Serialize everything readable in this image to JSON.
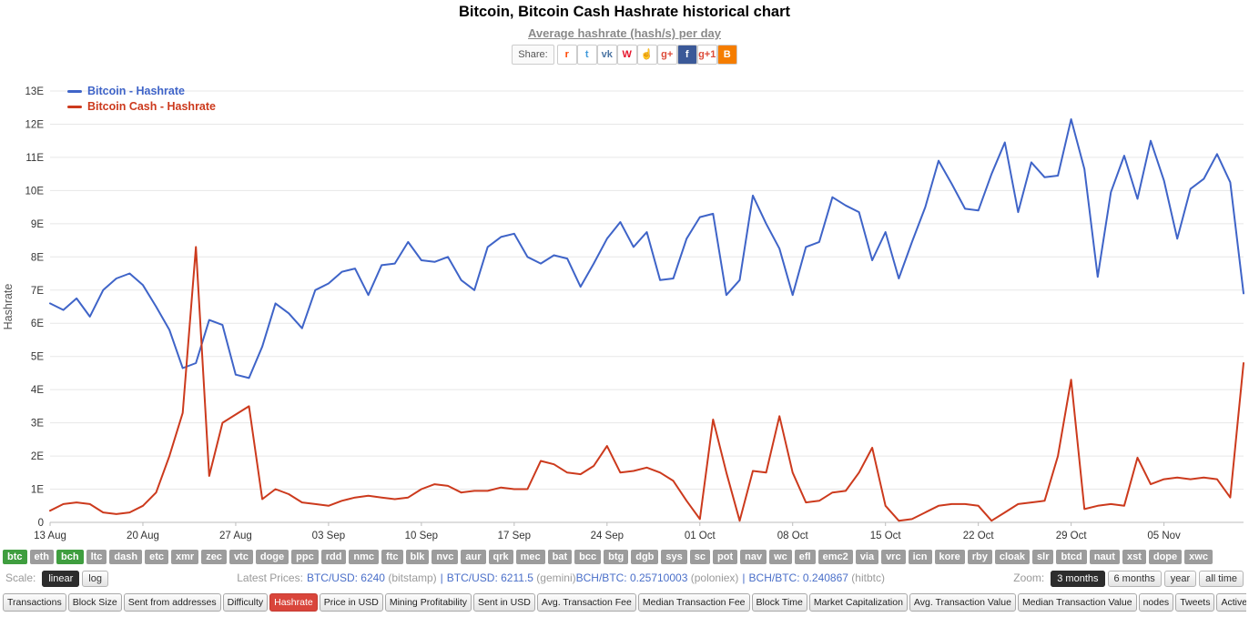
{
  "header": {
    "title": "Bitcoin, Bitcoin Cash Hashrate historical chart",
    "subtitle": "Average hashrate (hash/s) per day",
    "share_label": "Share:",
    "share_icons": [
      {
        "name": "reddit",
        "glyph": "r",
        "fg": "#ff4500",
        "bg": "#ffffff"
      },
      {
        "name": "twitter",
        "glyph": "t",
        "fg": "#4099db",
        "bg": "#ffffff"
      },
      {
        "name": "vkontakte",
        "glyph": "vk",
        "fg": "#4c75a3",
        "bg": "#ffffff"
      },
      {
        "name": "weibo",
        "glyph": "W",
        "fg": "#e6162d",
        "bg": "#ffffff"
      },
      {
        "name": "thumbs-up",
        "glyph": "☝",
        "fg": "#3b5998",
        "bg": "#ffffff"
      },
      {
        "name": "google-plus",
        "glyph": "g+",
        "fg": "#dd4b39",
        "bg": "#ffffff"
      },
      {
        "name": "facebook",
        "glyph": "f",
        "fg": "#ffffff",
        "bg": "#3b5998"
      },
      {
        "name": "google-plus-one",
        "glyph": "g+1",
        "fg": "#dd4b39",
        "bg": "#ffffff"
      },
      {
        "name": "blogger",
        "glyph": "B",
        "fg": "#ffffff",
        "bg": "#f57d00"
      }
    ]
  },
  "chart_data": {
    "type": "line",
    "title": "Bitcoin, Bitcoin Cash Hashrate historical chart",
    "xlabel": "",
    "ylabel": "Hashrate",
    "ylim": [
      0,
      13
    ],
    "grid": "horizontal",
    "legend_position": "top-left",
    "y_ticks": [
      "0",
      "1E",
      "2E",
      "3E",
      "4E",
      "5E",
      "6E",
      "7E",
      "8E",
      "9E",
      "10E",
      "11E",
      "12E",
      "13E"
    ],
    "x_tick_labels": [
      "13 Aug",
      "20 Aug",
      "27 Aug",
      "03 Sep",
      "10 Sep",
      "17 Sep",
      "24 Sep",
      "01 Oct",
      "08 Oct",
      "15 Oct",
      "22 Oct",
      "29 Oct",
      "05 Nov"
    ],
    "x_tick_days": [
      0,
      7,
      14,
      21,
      28,
      35,
      42,
      49,
      56,
      63,
      70,
      77,
      84
    ],
    "series": [
      {
        "name": "Bitcoin - Hashrate",
        "color": "#3f64c8",
        "values": [
          6.6,
          6.4,
          6.75,
          6.2,
          7.0,
          7.35,
          7.5,
          7.15,
          6.5,
          5.8,
          4.65,
          4.8,
          6.1,
          5.95,
          4.45,
          4.35,
          5.3,
          6.6,
          6.3,
          5.85,
          7.0,
          7.2,
          7.55,
          7.65,
          6.85,
          7.75,
          7.8,
          8.45,
          7.9,
          7.85,
          8.0,
          7.3,
          7.0,
          8.3,
          8.6,
          8.7,
          8.0,
          7.8,
          8.05,
          7.95,
          7.1,
          7.8,
          8.55,
          9.05,
          8.3,
          8.75,
          7.3,
          7.35,
          8.55,
          9.2,
          9.3,
          6.85,
          7.3,
          9.85,
          9.0,
          8.25,
          6.85,
          8.3,
          8.45,
          9.8,
          9.55,
          9.35,
          7.9,
          8.75,
          7.35,
          8.45,
          9.5,
          10.9,
          10.2,
          9.45,
          9.4,
          10.5,
          11.45,
          9.35,
          10.85,
          10.4,
          10.45,
          12.15,
          10.65,
          7.4,
          9.95,
          11.05,
          9.75,
          11.5,
          10.3,
          8.55,
          10.05,
          10.35,
          11.1,
          10.25,
          6.9
        ]
      },
      {
        "name": "Bitcoin Cash - Hashrate",
        "color": "#cc3a1d",
        "values": [
          0.35,
          0.55,
          0.6,
          0.55,
          0.3,
          0.25,
          0.3,
          0.5,
          0.9,
          2.0,
          3.3,
          8.3,
          1.4,
          3.0,
          3.25,
          3.5,
          0.7,
          1.0,
          0.85,
          0.6,
          0.55,
          0.5,
          0.65,
          0.75,
          0.8,
          0.75,
          0.7,
          0.75,
          1.0,
          1.15,
          1.1,
          0.9,
          0.95,
          0.95,
          1.05,
          1.0,
          1.0,
          1.85,
          1.75,
          1.5,
          1.45,
          1.7,
          2.3,
          1.5,
          1.55,
          1.65,
          1.5,
          1.25,
          0.65,
          0.1,
          3.1,
          1.5,
          0.05,
          1.55,
          1.5,
          3.2,
          1.5,
          0.6,
          0.65,
          0.9,
          0.95,
          1.5,
          2.25,
          0.5,
          0.05,
          0.1,
          0.3,
          0.5,
          0.55,
          0.55,
          0.5,
          0.05,
          0.3,
          0.55,
          0.6,
          0.65,
          2.0,
          4.3,
          0.4,
          0.5,
          0.55,
          0.5,
          1.95,
          1.15,
          1.3,
          1.35,
          1.3,
          1.35,
          1.3,
          0.75,
          4.8
        ]
      }
    ]
  },
  "coins": {
    "selected": [
      "btc",
      "bch"
    ],
    "items": [
      "btc",
      "eth",
      "bch",
      "ltc",
      "dash",
      "etc",
      "xmr",
      "zec",
      "vtc",
      "doge",
      "ppc",
      "rdd",
      "nmc",
      "ftc",
      "blk",
      "nvc",
      "aur",
      "qrk",
      "mec",
      "bat",
      "bcc",
      "btg",
      "dgb",
      "sys",
      "sc",
      "pot",
      "nav",
      "wc",
      "efl",
      "emc2",
      "via",
      "vrc",
      "icn",
      "kore",
      "rby",
      "cloak",
      "slr",
      "btcd",
      "naut",
      "xst",
      "dope",
      "xwc"
    ]
  },
  "controls": {
    "scale_label": "Scale:",
    "scale_options": [
      {
        "label": "linear",
        "active": true
      },
      {
        "label": "log",
        "active": false
      }
    ],
    "latest_prices_label": "Latest Prices:",
    "prices": [
      {
        "pair": "BTC/USD:",
        "value": "6240",
        "exchange": "(bitstamp)",
        "sep_after": true
      },
      {
        "pair": "BTC/USD:",
        "value": "6211.5",
        "exchange": "(gemini)",
        "sep_after": false
      },
      {
        "pair": "BCH/BTC:",
        "value": "0.25710003",
        "exchange": "(poloniex)",
        "sep_after": true
      },
      {
        "pair": "BCH/BTC:",
        "value": "0.240867",
        "exchange": "(hitbtc)",
        "sep_after": false
      }
    ],
    "zoom_label": "Zoom:",
    "zoom_options": [
      {
        "label": "3 months",
        "active": true
      },
      {
        "label": "6 months",
        "active": false
      },
      {
        "label": "year",
        "active": false
      },
      {
        "label": "all time",
        "active": false
      }
    ]
  },
  "metrics": {
    "active": "Hashrate",
    "items": [
      "Transactions",
      "Block Size",
      "Sent from addresses",
      "Difficulty",
      "Hashrate",
      "Price in USD",
      "Mining Profitability",
      "Sent in USD",
      "Avg. Transaction Fee",
      "Median Transaction Fee",
      "Block Time",
      "Market Capitalization",
      "Avg. Transaction Value",
      "Median Transaction Value",
      "nodes",
      "Tweets",
      "Active Addresses"
    ]
  }
}
